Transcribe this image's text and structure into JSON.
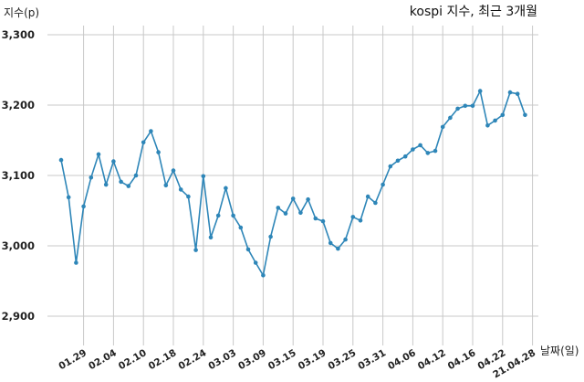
{
  "chart_data": {
    "type": "line",
    "title": "kospi 지수, 최근 3개월",
    "xlabel": "날짜(일)",
    "ylabel": "지수(p)",
    "ylim": [
      2850,
      3320
    ],
    "yticks": [
      2900,
      3000,
      3100,
      3200,
      3300
    ],
    "ytick_labels": [
      "2,900",
      "3,000",
      "3,100",
      "3,200",
      "3,300"
    ],
    "xtick_labels": [
      "01.29",
      "02.04",
      "02.10",
      "02.18",
      "02.24",
      "03.03",
      "03.09",
      "03.15",
      "03.19",
      "03.25",
      "03.31",
      "04.06",
      "04.12",
      "04.16",
      "04.22",
      "21.04.28"
    ],
    "xtick_index": [
      3,
      7,
      11,
      15,
      19,
      23,
      27,
      31,
      35,
      39,
      43,
      47,
      51,
      55,
      59,
      63
    ],
    "grid": true,
    "series": [
      {
        "values": [
          3122,
          3069,
          2976,
          3056,
          3097,
          3130,
          3087,
          3120,
          3091,
          3085,
          3100,
          3147,
          3163,
          3133,
          3086,
          3107,
          3080,
          3070,
          2994,
          3099,
          3012,
          3043,
          3082,
          3043,
          3026,
          2995,
          2976,
          2958,
          3013,
          3054,
          3046,
          3067,
          3047,
          3066,
          3039,
          3035,
          3004,
          2996,
          3009,
          3041,
          3036,
          3070,
          3061,
          3087,
          3113,
          3121,
          3127,
          3137,
          3143,
          3132,
          3135,
          3169,
          3182,
          3195,
          3199,
          3199,
          3220,
          3171,
          3178,
          3186,
          3218,
          3216,
          3186
        ]
      }
    ]
  }
}
